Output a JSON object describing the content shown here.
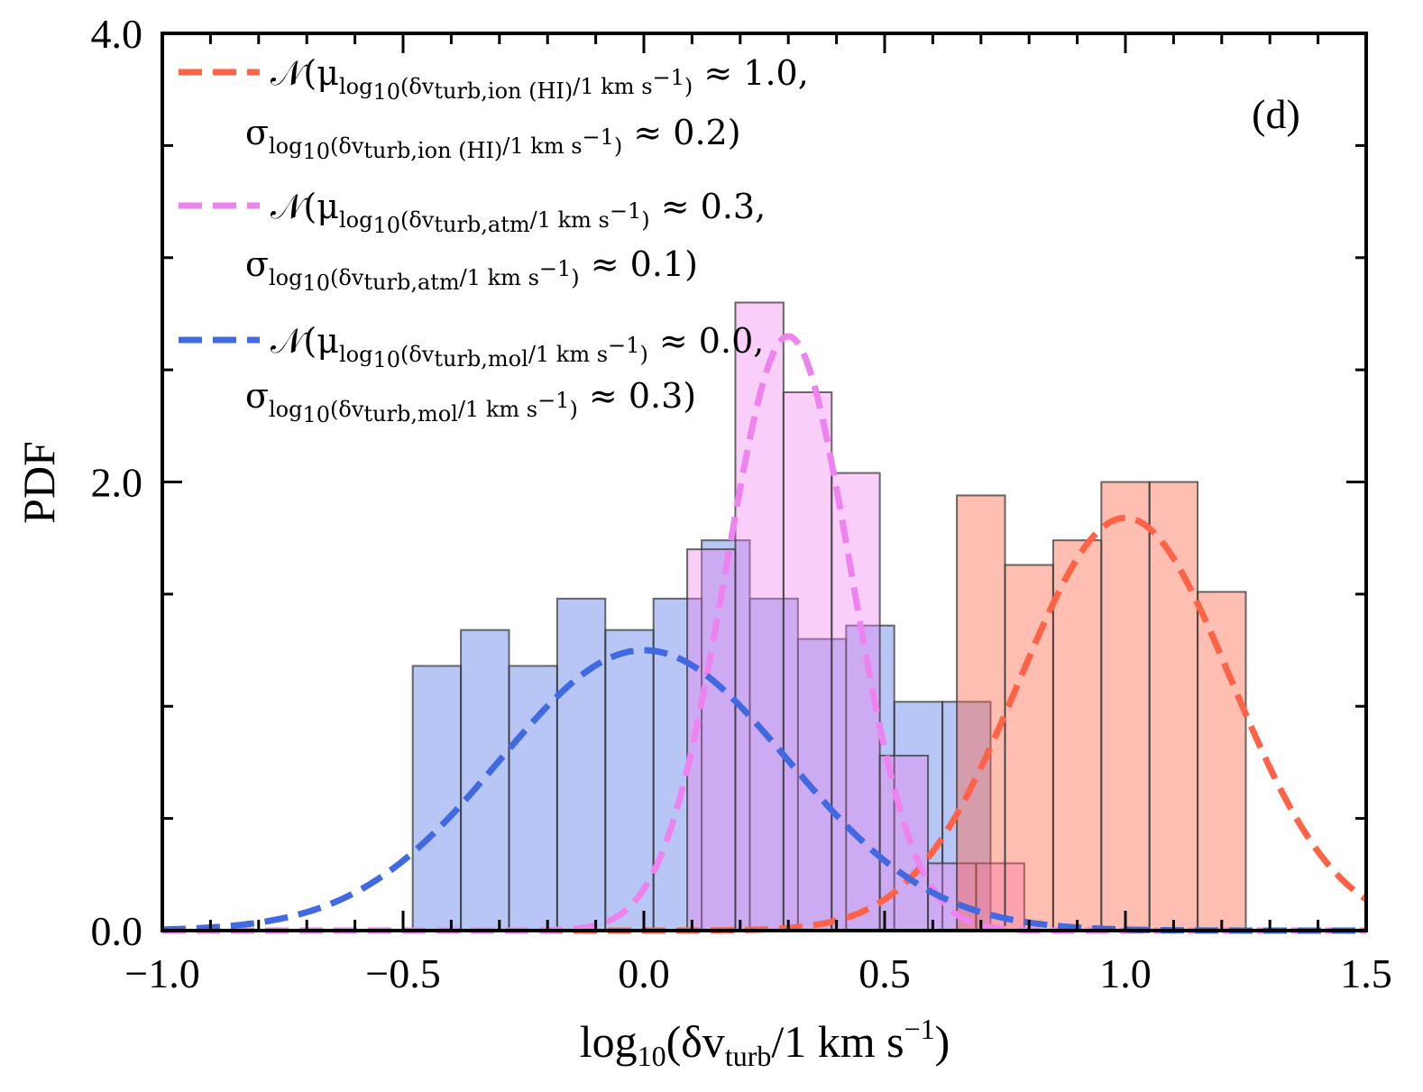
{
  "chart_data": {
    "type": "bar",
    "panel_label": "(d)",
    "xlabel": {
      "main": "log",
      "sub10": "10",
      "open": "(δv",
      "sub": "turb",
      "mid": "/1 km s",
      "sup": "−1",
      "close": ")"
    },
    "ylabel": "PDF",
    "xlim": [
      -1.0,
      1.5
    ],
    "ylim": [
      0.0,
      4.0
    ],
    "xticks": [
      -1.0,
      -0.5,
      0.0,
      0.5,
      1.0,
      1.5
    ],
    "xtick_labels": [
      "−1.0",
      "−0.5",
      "0.0",
      "0.5",
      "1.0",
      "1.5"
    ],
    "yticks": [
      0.0,
      2.0,
      4.0
    ],
    "ytick_labels": [
      "0.0",
      "2.0",
      "4.0"
    ],
    "y_minor_step": 0.5,
    "x_minor_step": 0.1,
    "histograms": [
      {
        "name": "mol",
        "color": "#4169e1",
        "fill_alpha": 0.38,
        "bin_edges": [
          -0.48,
          -0.38,
          -0.28,
          -0.18,
          -0.08,
          0.02,
          0.12,
          0.22,
          0.32,
          0.42,
          0.52,
          0.62,
          0.72
        ],
        "values": [
          1.18,
          1.34,
          1.18,
          1.48,
          1.34,
          1.48,
          1.74,
          1.48,
          1.3,
          1.36,
          1.02,
          1.02
        ]
      },
      {
        "name": "atm",
        "color": "#ee82ee",
        "fill_alpha": 0.38,
        "bin_edges": [
          0.09,
          0.19,
          0.29,
          0.39,
          0.49,
          0.59,
          0.69,
          0.79
        ],
        "values": [
          1.7,
          2.8,
          2.4,
          2.04,
          0.78,
          0.3,
          0.3
        ]
      },
      {
        "name": "ion_HI",
        "color": "#ff6347",
        "fill_alpha": 0.42,
        "bin_edges": [
          0.65,
          0.75,
          0.85,
          0.95,
          1.05,
          1.15,
          1.25
        ],
        "values": [
          1.94,
          1.63,
          1.74,
          2.0,
          2.0,
          1.51
        ]
      }
    ],
    "series": [
      {
        "name": "ion (HI)",
        "color": "#ff6347",
        "mu": 1.0,
        "sigma": 0.22,
        "amplitude": 1.84
      },
      {
        "name": "atm",
        "color": "#ee82ee",
        "mu": 0.3,
        "sigma": 0.13,
        "amplitude": 2.65
      },
      {
        "name": "mol",
        "color": "#4169e1",
        "mu": 0.0,
        "sigma": 0.3,
        "amplitude": 1.25
      }
    ],
    "legend": {
      "location": "top-left",
      "entries": [
        {
          "color": "#ff6347",
          "pre": "𝒩(μ",
          "sub1": "log",
          "sub2": "10",
          "sub3": "(δv",
          "sub4": "turb,ion (HI)",
          "sub5": "/1 km s",
          "sub6": "−1",
          "sub7": ")",
          "post": " ≈ 1.0,",
          "sigma_pre": "σ",
          "sigma_post": " ≈ 0.2)"
        },
        {
          "color": "#ee82ee",
          "pre": "𝒩(μ",
          "sub1": "log",
          "sub2": "10",
          "sub3": "(δv",
          "sub4": "turb,atm",
          "sub5": "/1 km s",
          "sub6": "−1",
          "sub7": ")",
          "post": " ≈ 0.3,",
          "sigma_pre": "σ",
          "sigma_post": " ≈ 0.1)"
        },
        {
          "color": "#4169e1",
          "pre": "𝒩(μ",
          "sub1": "log",
          "sub2": "10",
          "sub3": "(δv",
          "sub4": "turb,mol",
          "sub5": "/1 km s",
          "sub6": "−1",
          "sub7": ")",
          "post": " ≈ 0.0,",
          "sigma_pre": "σ",
          "sigma_post": " ≈ 0.3)"
        }
      ]
    }
  }
}
